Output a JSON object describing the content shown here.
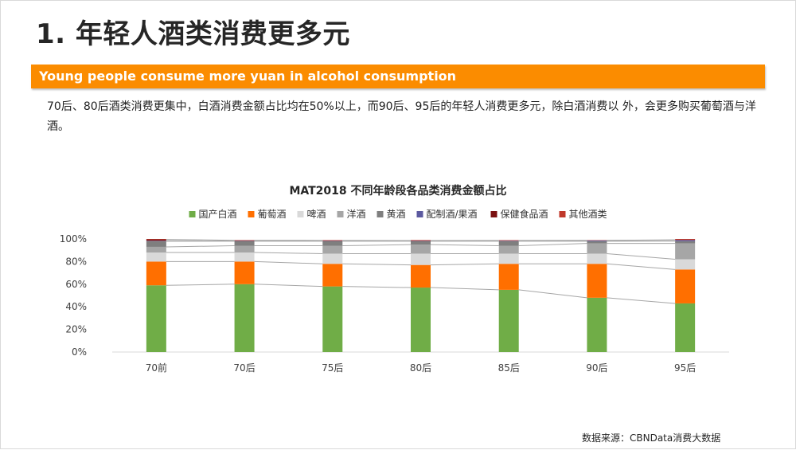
{
  "page": {
    "title": "1. 年轻人酒类消费更多元",
    "banner": "Young people consume more yuan in alcohol consumption",
    "description": "70后、80后酒类消费更集中，白酒消费金额占比均在50%以上，而90后、95后的年轻人消费更多元，除白酒消费以 外，会更多购买葡萄酒与洋酒。",
    "source": "数据来源：CBNData消费大数据"
  },
  "chart_data": {
    "type": "bar",
    "stacked": true,
    "title": "MAT2018  不同年龄段各品类消费金额占比",
    "categories": [
      "70前",
      "70后",
      "75后",
      "80后",
      "85后",
      "90后",
      "95后"
    ],
    "y_ticks": [
      "0%",
      "20%",
      "40%",
      "60%",
      "80%",
      "100%"
    ],
    "ylim": [
      0,
      100
    ],
    "legend_position": "top",
    "series_lines": true,
    "series": [
      {
        "name": "国产白酒",
        "color": "#70ad47",
        "values": [
          59,
          60,
          58,
          57,
          55,
          48,
          43
        ]
      },
      {
        "name": "葡萄酒",
        "color": "#ff6f00",
        "values": [
          21,
          20,
          20,
          20,
          23,
          30,
          30
        ]
      },
      {
        "name": "啤酒",
        "color": "#d9d9d9",
        "values": [
          8,
          8,
          9,
          10,
          9,
          9,
          9
        ]
      },
      {
        "name": "洋酒",
        "color": "#a6a6a6",
        "values": [
          5,
          6,
          7,
          8,
          7,
          9,
          14
        ]
      },
      {
        "name": "黄酒",
        "color": "#7f7f7f",
        "values": [
          5,
          4,
          4,
          3,
          4,
          2,
          2
        ]
      },
      {
        "name": "配制酒/果酒",
        "color": "#5c5aa0",
        "values": [
          0.4,
          0.3,
          0.3,
          0.3,
          0.4,
          0.6,
          1
        ]
      },
      {
        "name": "保健食品酒",
        "color": "#7b1010",
        "values": [
          1.2,
          0.5,
          0.4,
          0.3,
          0.3,
          0.2,
          0.2
        ]
      },
      {
        "name": "其他酒类",
        "color": "#c0392b",
        "values": [
          0.4,
          0.2,
          0.3,
          0.4,
          0.3,
          0.2,
          0.8
        ]
      }
    ]
  }
}
